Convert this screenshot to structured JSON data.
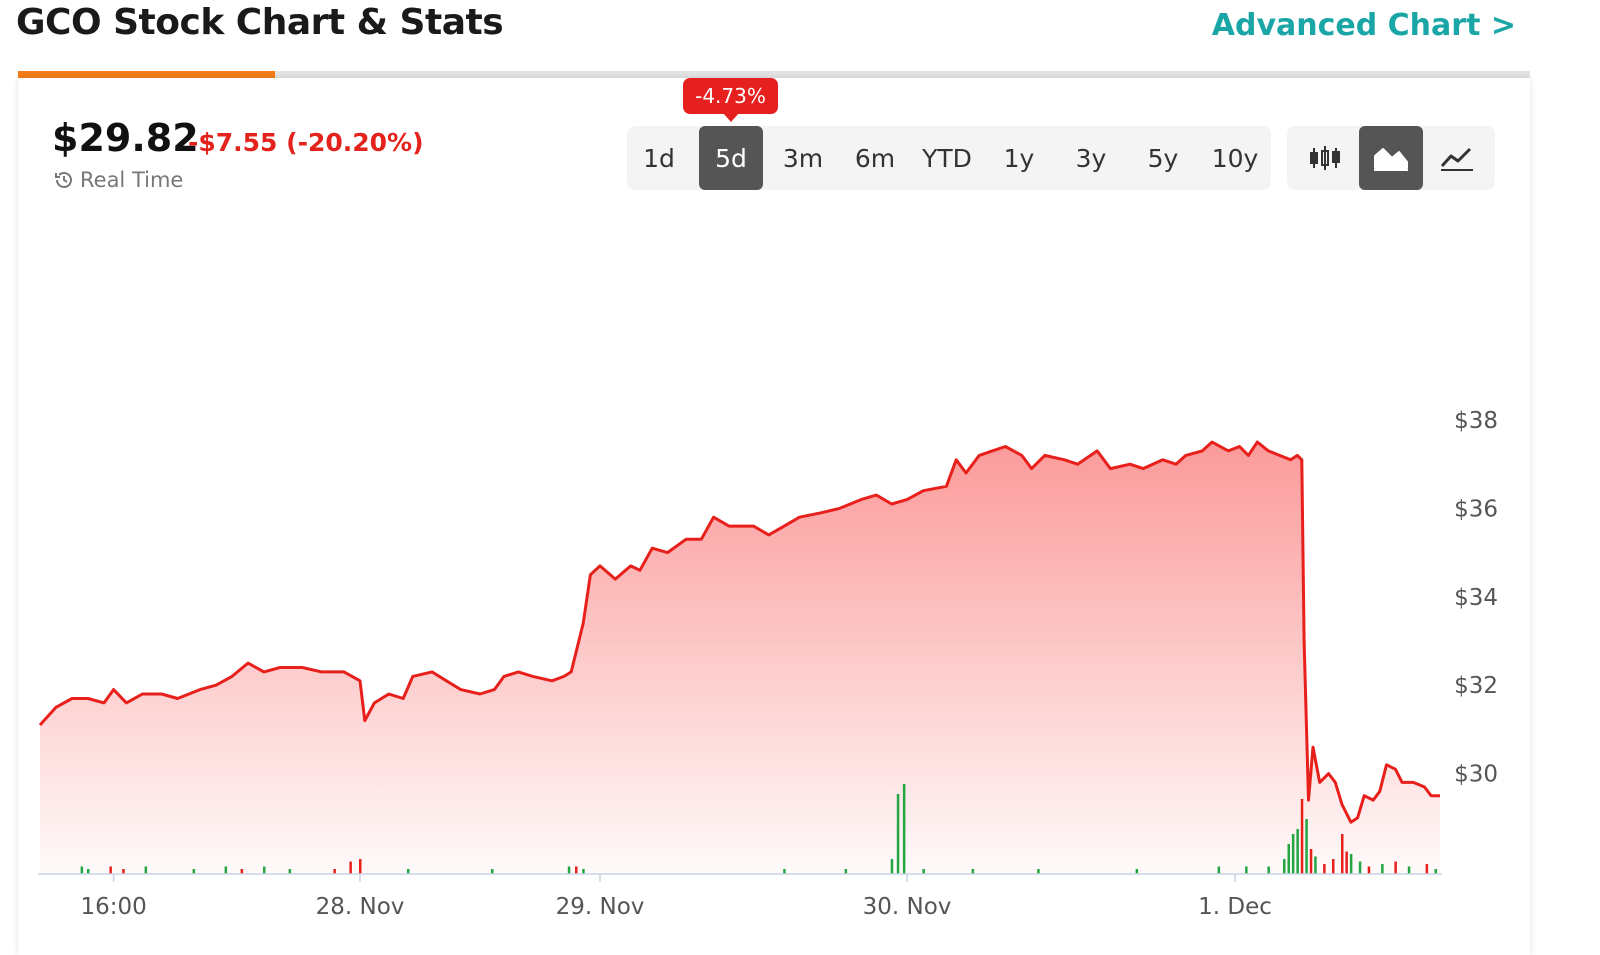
{
  "header": {
    "title": "GCO Stock Chart & Stats",
    "advanced_link": "Advanced Chart >",
    "tab_progress": 0.17
  },
  "quote": {
    "price": "$29.82",
    "change": "-$7.55 (-20.20%)",
    "realtime_label": "Real Time"
  },
  "range_selector": {
    "options": [
      "1d",
      "5d",
      "3m",
      "6m",
      "YTD",
      "1y",
      "3y",
      "5y",
      "10y"
    ],
    "selected": "5d",
    "badge": "-4.73%"
  },
  "chart_types": {
    "options": [
      "candlestick-icon",
      "area-icon",
      "line-icon"
    ],
    "selected": "area-icon"
  },
  "colors": {
    "line": "#e8201c",
    "fill_top": "#fb9a9a",
    "volume_up": "#21a642",
    "volume_down": "#e8201c",
    "badge": "#e61f1f",
    "accent_link": "#1aa6a6",
    "progress": "#f57c16"
  },
  "chart_data": {
    "type": "area",
    "title": "",
    "xlabel": "",
    "ylabel": "",
    "x_ticks": [
      {
        "label": "16:00",
        "t": 0.23
      },
      {
        "label": "28. Nov",
        "t": 1.0
      },
      {
        "label": "29. Nov",
        "t": 2.0
      },
      {
        "label": "30. Nov",
        "t": 3.0
      },
      {
        "label": "1. Dec",
        "t": 4.0
      }
    ],
    "y_ticks": [
      30,
      32,
      34,
      36,
      38
    ],
    "y_tick_labels": [
      "$30",
      "$32",
      "$34",
      "$36",
      "$38"
    ],
    "ylim": [
      27.65,
      39.8
    ],
    "xlim": [
      0,
      4.74
    ],
    "price_series": [
      [
        0.0,
        31.1
      ],
      [
        0.05,
        31.5
      ],
      [
        0.1,
        31.7
      ],
      [
        0.15,
        31.7
      ],
      [
        0.2,
        31.6
      ],
      [
        0.23,
        31.9
      ],
      [
        0.27,
        31.6
      ],
      [
        0.32,
        31.8
      ],
      [
        0.38,
        31.8
      ],
      [
        0.43,
        31.7
      ],
      [
        0.5,
        31.9
      ],
      [
        0.55,
        32.0
      ],
      [
        0.6,
        32.2
      ],
      [
        0.65,
        32.5
      ],
      [
        0.7,
        32.3
      ],
      [
        0.75,
        32.4
      ],
      [
        0.82,
        32.4
      ],
      [
        0.88,
        32.3
      ],
      [
        0.95,
        32.3
      ],
      [
        1.0,
        32.1
      ],
      [
        1.02,
        31.2
      ],
      [
        1.06,
        31.6
      ],
      [
        1.12,
        31.8
      ],
      [
        1.18,
        31.7
      ],
      [
        1.22,
        32.2
      ],
      [
        1.3,
        32.3
      ],
      [
        1.36,
        32.1
      ],
      [
        1.42,
        31.9
      ],
      [
        1.5,
        31.8
      ],
      [
        1.56,
        31.9
      ],
      [
        1.6,
        32.2
      ],
      [
        1.66,
        32.3
      ],
      [
        1.72,
        32.2
      ],
      [
        1.8,
        32.1
      ],
      [
        1.85,
        32.2
      ],
      [
        1.88,
        32.3
      ],
      [
        1.93,
        33.4
      ],
      [
        1.96,
        34.5
      ],
      [
        2.0,
        34.7
      ],
      [
        2.05,
        34.4
      ],
      [
        2.1,
        34.7
      ],
      [
        2.13,
        34.6
      ],
      [
        2.17,
        35.1
      ],
      [
        2.22,
        35.0
      ],
      [
        2.28,
        35.3
      ],
      [
        2.33,
        35.3
      ],
      [
        2.37,
        35.8
      ],
      [
        2.42,
        35.6
      ],
      [
        2.5,
        35.6
      ],
      [
        2.55,
        35.4
      ],
      [
        2.6,
        35.6
      ],
      [
        2.65,
        35.8
      ],
      [
        2.72,
        35.9
      ],
      [
        2.78,
        36.0
      ],
      [
        2.85,
        36.2
      ],
      [
        2.9,
        36.3
      ],
      [
        2.95,
        36.1
      ],
      [
        3.0,
        36.2
      ],
      [
        3.05,
        36.4
      ],
      [
        3.12,
        36.5
      ],
      [
        3.15,
        37.1
      ],
      [
        3.18,
        36.8
      ],
      [
        3.22,
        37.2
      ],
      [
        3.26,
        37.3
      ],
      [
        3.3,
        37.4
      ],
      [
        3.35,
        37.2
      ],
      [
        3.38,
        36.9
      ],
      [
        3.42,
        37.2
      ],
      [
        3.48,
        37.1
      ],
      [
        3.52,
        37.0
      ],
      [
        3.58,
        37.3
      ],
      [
        3.62,
        36.9
      ],
      [
        3.68,
        37.0
      ],
      [
        3.72,
        36.9
      ],
      [
        3.78,
        37.1
      ],
      [
        3.82,
        37.0
      ],
      [
        3.85,
        37.2
      ],
      [
        3.9,
        37.3
      ],
      [
        3.93,
        37.5
      ],
      [
        3.98,
        37.3
      ],
      [
        4.02,
        37.4
      ],
      [
        4.06,
        37.2
      ],
      [
        4.1,
        37.5
      ],
      [
        4.15,
        37.3
      ],
      [
        4.2,
        37.2
      ],
      [
        4.25,
        37.1
      ],
      [
        4.28,
        37.2
      ],
      [
        4.3,
        37.1
      ],
      [
        4.31,
        33.0
      ],
      [
        4.33,
        29.4
      ],
      [
        4.35,
        30.6
      ],
      [
        4.38,
        29.8
      ],
      [
        4.42,
        30.0
      ],
      [
        4.45,
        29.8
      ],
      [
        4.48,
        29.3
      ],
      [
        4.52,
        28.9
      ],
      [
        4.55,
        29.0
      ],
      [
        4.58,
        29.5
      ],
      [
        4.62,
        29.4
      ],
      [
        4.65,
        29.6
      ],
      [
        4.68,
        30.2
      ],
      [
        4.72,
        30.1
      ],
      [
        4.75,
        29.8
      ],
      [
        4.8,
        29.8
      ],
      [
        4.85,
        29.7
      ],
      [
        4.88,
        29.5
      ],
      [
        4.92,
        29.5
      ]
    ],
    "volume_bars": [
      [
        0.13,
        0.03,
        "up"
      ],
      [
        0.15,
        0.02,
        "up"
      ],
      [
        0.22,
        0.03,
        "down"
      ],
      [
        0.26,
        0.02,
        "down"
      ],
      [
        0.33,
        0.03,
        "up"
      ],
      [
        0.48,
        0.02,
        "up"
      ],
      [
        0.58,
        0.03,
        "up"
      ],
      [
        0.63,
        0.02,
        "down"
      ],
      [
        0.7,
        0.03,
        "up"
      ],
      [
        0.78,
        0.02,
        "up"
      ],
      [
        0.92,
        0.02,
        "down"
      ],
      [
        0.97,
        0.05,
        "down"
      ],
      [
        1.0,
        0.06,
        "down"
      ],
      [
        1.2,
        0.02,
        "up"
      ],
      [
        1.55,
        0.02,
        "up"
      ],
      [
        1.87,
        0.03,
        "up"
      ],
      [
        1.9,
        0.03,
        "down"
      ],
      [
        1.93,
        0.02,
        "up"
      ],
      [
        2.6,
        0.02,
        "up"
      ],
      [
        2.8,
        0.02,
        "up"
      ],
      [
        2.95,
        0.06,
        "up"
      ],
      [
        2.97,
        0.32,
        "up"
      ],
      [
        2.99,
        0.36,
        "up"
      ],
      [
        3.05,
        0.02,
        "up"
      ],
      [
        3.2,
        0.02,
        "up"
      ],
      [
        3.4,
        0.02,
        "up"
      ],
      [
        3.7,
        0.02,
        "up"
      ],
      [
        3.95,
        0.03,
        "up"
      ],
      [
        4.05,
        0.03,
        "up"
      ],
      [
        4.15,
        0.03,
        "up"
      ],
      [
        4.22,
        0.06,
        "up"
      ],
      [
        4.24,
        0.12,
        "up"
      ],
      [
        4.26,
        0.16,
        "up"
      ],
      [
        4.28,
        0.18,
        "up"
      ],
      [
        4.3,
        0.3,
        "down"
      ],
      [
        4.32,
        0.22,
        "up"
      ],
      [
        4.34,
        0.1,
        "down"
      ],
      [
        4.36,
        0.07,
        "up"
      ],
      [
        4.4,
        0.04,
        "down"
      ],
      [
        4.44,
        0.06,
        "down"
      ],
      [
        4.48,
        0.16,
        "down"
      ],
      [
        4.5,
        0.09,
        "down"
      ],
      [
        4.52,
        0.08,
        "up"
      ],
      [
        4.56,
        0.05,
        "up"
      ],
      [
        4.6,
        0.03,
        "down"
      ],
      [
        4.66,
        0.04,
        "up"
      ],
      [
        4.72,
        0.05,
        "down"
      ],
      [
        4.78,
        0.03,
        "up"
      ],
      [
        4.86,
        0.04,
        "down"
      ],
      [
        4.9,
        0.02,
        "up"
      ]
    ]
  }
}
